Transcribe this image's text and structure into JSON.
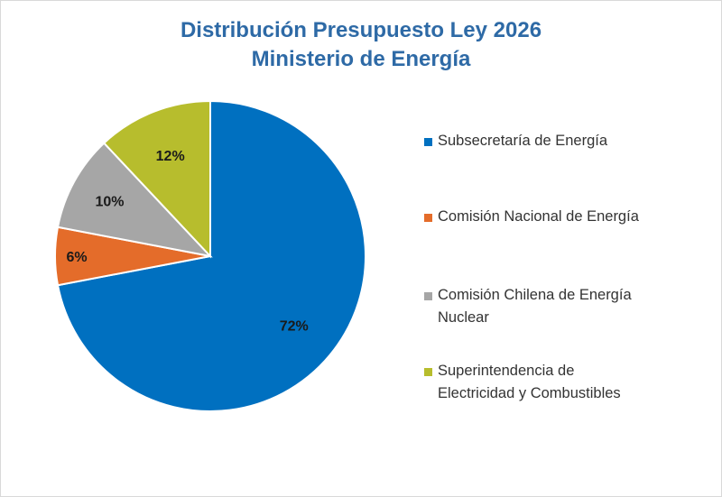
{
  "chart_data": {
    "type": "pie",
    "title": "Distribución Presupuesto Ley 2026",
    "subtitle": "Ministerio de Energía",
    "categories": [
      "Subsecretaría de Energía",
      "Comisión Nacional de Energía",
      "Comisión Chilena de Energía Nuclear",
      "Superintendencia de Electricidad y Combustibles"
    ],
    "values": [
      72,
      6,
      10,
      12
    ],
    "data_labels": [
      "72%",
      "6%",
      "10%",
      "12%"
    ],
    "colors": [
      "#0070c0",
      "#e46c2a",
      "#a6a6a6",
      "#b7bd2d"
    ],
    "legend_position": "right"
  },
  "legend": {
    "items": [
      {
        "label_line1": "Subsecretaría de Energía",
        "label_line2": ""
      },
      {
        "label_line1": "Comisión Nacional de Energía",
        "label_line2": ""
      },
      {
        "label_line1": "Comisión Chilena de Energía",
        "label_line2": "Nuclear"
      },
      {
        "label_line1": "Superintendencia de",
        "label_line2": "Electricidad y Combustibles"
      }
    ]
  }
}
